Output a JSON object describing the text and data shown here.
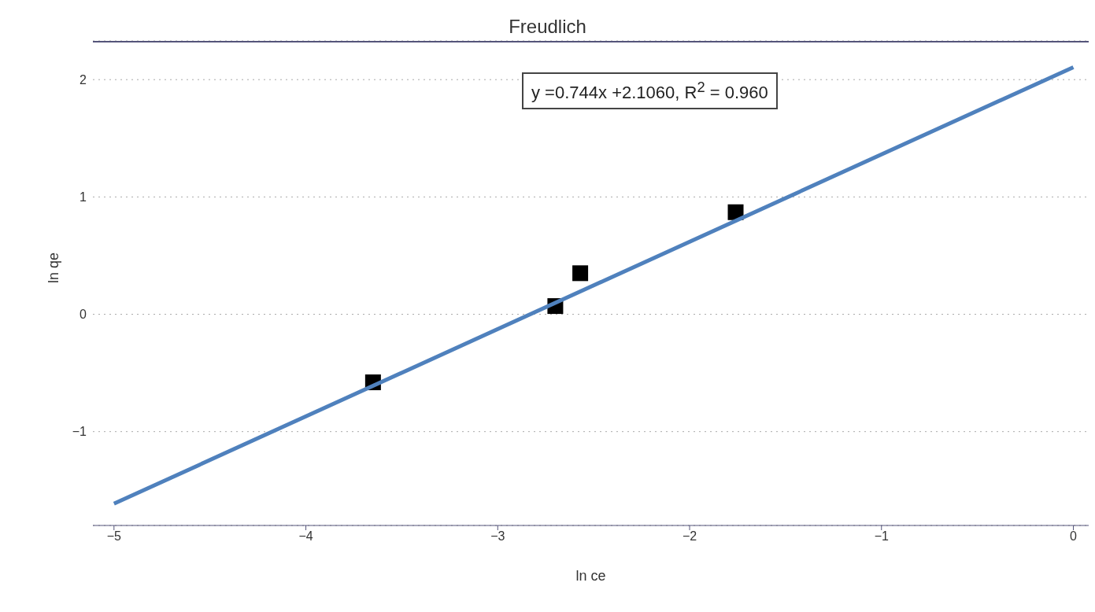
{
  "chart_data": {
    "type": "scatter",
    "title": "Freudlich",
    "xlabel": "ln ce",
    "ylabel": "ln qe",
    "annotations": [
      "y =0.744x +2.1060, R$^{2}$ = 0.960"
    ],
    "series": [
      {
        "color": "#000000",
        "marker": "square",
        "x": [
          -3.65,
          -2.7,
          -2.57,
          -1.76
        ],
        "values": [
          -0.58,
          0.07,
          0.35,
          0.87
        ]
      },
      {
        "type": "line",
        "color": "#4f81bd",
        "marker": "none",
        "line_style": "solid",
        "x": [
          -5,
          0
        ],
        "values": [
          -1.614,
          2.106
        ]
      }
    ],
    "xlim": [
      -5.11,
      0.08
    ],
    "xticks": [
      -5,
      -4,
      -3,
      -2,
      -1,
      0
    ],
    "ylim": [
      -1.8,
      2.33
    ],
    "yticks": [
      -1,
      0,
      1,
      2
    ],
    "grid": "y",
    "legend": false
  }
}
